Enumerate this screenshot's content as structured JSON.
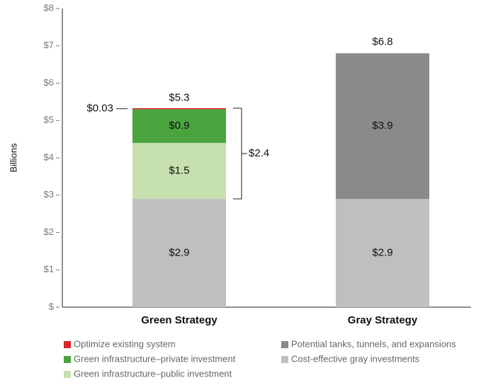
{
  "chart_data": {
    "type": "stacked-bar",
    "y_label": "Billions",
    "categories": [
      "Green Strategy",
      "Gray Strategy"
    ],
    "series": [
      {
        "name": "Cost-effective gray investments",
        "color": "#bfbfc0",
        "values": [
          2.9,
          2.9
        ],
        "value_labels": [
          "$2.9",
          "$2.9"
        ]
      },
      {
        "name": "Green infrastructure–public investment",
        "color": "#c6dfae",
        "values": [
          1.5,
          null
        ],
        "value_labels": [
          "$1.5",
          null
        ]
      },
      {
        "name": "Green infrastructure–private investment",
        "color": "#4aa43e",
        "values": [
          0.9,
          null
        ],
        "value_labels": [
          "$0.9",
          null
        ]
      },
      {
        "name": "Optimize existing system",
        "color": "#d7262c",
        "values": [
          0.03,
          null
        ],
        "value_labels": [
          "$0.03",
          null
        ]
      },
      {
        "name": "Potential tanks, tunnels, and expansions",
        "color": "#8a8a8c",
        "values": [
          null,
          3.9
        ],
        "value_labels": [
          null,
          "$3.9"
        ]
      }
    ],
    "totals": [
      5.3,
      6.8
    ],
    "total_labels": [
      "$5.3",
      "$6.8"
    ],
    "bracket": {
      "value": 2.4,
      "label": "$2.4"
    },
    "ylim": [
      0,
      8
    ],
    "yticks": [
      {
        "value": 0,
        "label": "$"
      },
      {
        "value": 1,
        "label": "$1"
      },
      {
        "value": 2,
        "label": "$2"
      },
      {
        "value": 3,
        "label": "$3"
      },
      {
        "value": 4,
        "label": "$4"
      },
      {
        "value": 5,
        "label": "$5"
      },
      {
        "value": 6,
        "label": "$6"
      },
      {
        "value": 7,
        "label": "$7"
      },
      {
        "value": 8,
        "label": "$8"
      }
    ]
  }
}
